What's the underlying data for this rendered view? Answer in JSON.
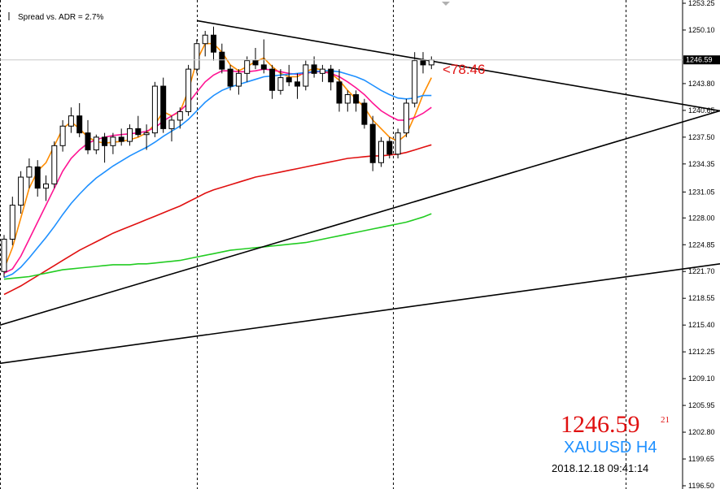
{
  "chart_data": {
    "type": "candlestick",
    "title": "",
    "indicator_label": "Spread vs. ADR = 2.7%",
    "timer_label": "<78:46",
    "symbol_label": "XAUUSD H4",
    "price": {
      "big": "1246.59",
      "sup": "21",
      "axis_label": "1246.59",
      "value": 1246.59
    },
    "datetime_label": "2018.12.18 09:41:14",
    "ylim": [
      1196.5,
      1253.25
    ],
    "y_ticks": [
      {
        "v": 1253.25,
        "label": "1253.25"
      },
      {
        "v": 1250.1,
        "label": "1250.10"
      },
      {
        "v": 1243.8,
        "label": "1243.80"
      },
      {
        "v": 1240.65,
        "label": "1240.65"
      },
      {
        "v": 1237.5,
        "label": "1237.50"
      },
      {
        "v": 1234.35,
        "label": "1234.35"
      },
      {
        "v": 1231.05,
        "label": "1231.05"
      },
      {
        "v": 1228.0,
        "label": "1228.00"
      },
      {
        "v": 1224.85,
        "label": "1224.85"
      },
      {
        "v": 1221.7,
        "label": "1221.70"
      },
      {
        "v": 1218.55,
        "label": "1218.55"
      },
      {
        "v": 1215.4,
        "label": "1215.40"
      },
      {
        "v": 1212.25,
        "label": "1212.25"
      },
      {
        "v": 1209.1,
        "label": "1209.10"
      },
      {
        "v": 1205.95,
        "label": "1205.95"
      },
      {
        "v": 1202.8,
        "label": "1202.80"
      },
      {
        "v": 1199.65,
        "label": "1199.65"
      },
      {
        "v": 1196.5,
        "label": "1196.50"
      }
    ],
    "candles": [
      [
        1221.7,
        1226.0,
        1221.0,
        1225.5
      ],
      [
        1225.5,
        1230.5,
        1224.8,
        1229.5
      ],
      [
        1229.5,
        1233.5,
        1228.5,
        1232.8
      ],
      [
        1232.8,
        1235.0,
        1231.5,
        1234.0
      ],
      [
        1234.0,
        1234.8,
        1230.5,
        1231.5
      ],
      [
        1231.5,
        1233.0,
        1230.0,
        1232.0
      ],
      [
        1232.0,
        1237.0,
        1231.5,
        1236.5
      ],
      [
        1236.5,
        1239.5,
        1235.8,
        1238.8
      ],
      [
        1238.8,
        1241.0,
        1238.0,
        1240.0
      ],
      [
        1240.0,
        1241.5,
        1237.5,
        1238.0
      ],
      [
        1238.0,
        1239.5,
        1235.5,
        1236.0
      ],
      [
        1236.0,
        1237.8,
        1235.5,
        1237.5
      ],
      [
        1237.5,
        1238.0,
        1234.5,
        1236.5
      ],
      [
        1236.5,
        1238.0,
        1235.5,
        1237.5
      ],
      [
        1237.5,
        1238.5,
        1236.5,
        1237.0
      ],
      [
        1237.0,
        1239.0,
        1236.5,
        1238.5
      ],
      [
        1238.5,
        1240.0,
        1237.5,
        1237.8
      ],
      [
        1237.8,
        1239.0,
        1236.0,
        1238.0
      ],
      [
        1238.0,
        1244.0,
        1237.5,
        1243.5
      ],
      [
        1243.5,
        1244.5,
        1238.0,
        1238.5
      ],
      [
        1238.5,
        1240.0,
        1237.0,
        1239.5
      ],
      [
        1239.5,
        1241.0,
        1238.5,
        1240.5
      ],
      [
        1240.5,
        1246.0,
        1240.0,
        1245.5
      ],
      [
        1245.5,
        1249.0,
        1245.0,
        1248.5
      ],
      [
        1248.5,
        1250.0,
        1247.0,
        1249.5
      ],
      [
        1249.5,
        1250.5,
        1246.5,
        1247.5
      ],
      [
        1247.5,
        1248.5,
        1245.0,
        1245.5
      ],
      [
        1245.5,
        1246.0,
        1243.0,
        1243.5
      ],
      [
        1243.5,
        1245.5,
        1242.5,
        1245.0
      ],
      [
        1245.0,
        1247.0,
        1244.0,
        1246.5
      ],
      [
        1246.5,
        1248.0,
        1245.5,
        1246.0
      ],
      [
        1246.0,
        1249.0,
        1245.0,
        1245.5
      ],
      [
        1245.5,
        1246.0,
        1242.0,
        1243.0
      ],
      [
        1243.0,
        1245.5,
        1242.5,
        1244.5
      ],
      [
        1244.5,
        1246.0,
        1243.5,
        1244.0
      ],
      [
        1244.0,
        1245.0,
        1242.0,
        1243.5
      ],
      [
        1243.5,
        1246.5,
        1243.0,
        1246.0
      ],
      [
        1246.0,
        1247.0,
        1244.5,
        1245.0
      ],
      [
        1245.0,
        1246.0,
        1244.0,
        1245.5
      ],
      [
        1245.5,
        1246.0,
        1243.0,
        1244.0
      ],
      [
        1244.0,
        1245.5,
        1240.5,
        1241.5
      ],
      [
        1241.5,
        1243.0,
        1240.5,
        1242.5
      ],
      [
        1242.5,
        1243.0,
        1240.5,
        1241.5
      ],
      [
        1241.5,
        1242.0,
        1238.5,
        1239.0
      ],
      [
        1239.0,
        1240.0,
        1233.5,
        1234.5
      ],
      [
        1234.5,
        1237.5,
        1234.0,
        1237.0
      ],
      [
        1237.0,
        1237.5,
        1235.0,
        1235.5
      ],
      [
        1235.5,
        1238.5,
        1235.0,
        1238.0
      ],
      [
        1238.0,
        1242.0,
        1237.5,
        1241.5
      ],
      [
        1241.5,
        1247.5,
        1241.0,
        1246.5
      ],
      [
        1246.5,
        1247.5,
        1245.0,
        1246.0
      ],
      [
        1246.0,
        1247.0,
        1245.5,
        1246.59
      ]
    ],
    "series": [
      {
        "color": "#ff8c00",
        "values": [
          1222.0,
          1224.5,
          1228.0,
          1231.5,
          1233.5,
          1234.5,
          1236.5,
          1238.5,
          1239.3,
          1238.5,
          1237.5,
          1237.0,
          1236.8,
          1236.9,
          1237.0,
          1237.2,
          1237.5,
          1238.0,
          1239.0,
          1240.5,
          1240.0,
          1240.5,
          1243.0,
          1246.5,
          1248.5,
          1248.5,
          1247.5,
          1246.0,
          1245.3,
          1245.8,
          1246.4,
          1246.8,
          1245.8,
          1245.0,
          1244.6,
          1244.6,
          1245.2,
          1245.6,
          1245.4,
          1245.0,
          1244.2,
          1243.0,
          1242.0,
          1241.0,
          1239.5,
          1238.5,
          1237.5,
          1237.0,
          1237.8,
          1240.0,
          1242.5,
          1244.5
        ]
      },
      {
        "color": "#ff1493",
        "values": [
          1221.5,
          1222.0,
          1223.5,
          1225.5,
          1227.5,
          1229.5,
          1231.5,
          1233.5,
          1235.0,
          1236.0,
          1236.8,
          1237.2,
          1237.5,
          1237.7,
          1237.8,
          1237.9,
          1238.0,
          1238.2,
          1238.6,
          1239.4,
          1240.0,
          1240.6,
          1241.5,
          1242.8,
          1244.0,
          1244.8,
          1245.3,
          1245.3,
          1245.2,
          1245.2,
          1245.3,
          1245.5,
          1245.4,
          1245.2,
          1245.0,
          1244.9,
          1245.0,
          1245.2,
          1245.2,
          1245.0,
          1244.6,
          1244.0,
          1243.3,
          1242.5,
          1241.5,
          1240.6,
          1240.0,
          1239.5,
          1239.5,
          1239.8,
          1240.3,
          1241.0
        ]
      },
      {
        "color": "#1e90ff",
        "values": [
          1221.0,
          1221.4,
          1222.2,
          1223.3,
          1224.5,
          1225.7,
          1227.0,
          1228.4,
          1229.7,
          1230.8,
          1231.8,
          1232.7,
          1233.4,
          1234.1,
          1234.7,
          1235.3,
          1235.8,
          1236.3,
          1236.9,
          1237.6,
          1238.2,
          1238.8,
          1239.6,
          1240.6,
          1241.6,
          1242.4,
          1243.0,
          1243.4,
          1243.7,
          1244.0,
          1244.3,
          1244.6,
          1244.7,
          1244.8,
          1244.9,
          1245.0,
          1245.1,
          1245.2,
          1245.3,
          1245.3,
          1245.2,
          1244.9,
          1244.6,
          1244.2,
          1243.6,
          1243.0,
          1242.5,
          1242.1,
          1242.0,
          1242.1,
          1242.4,
          1242.4
        ]
      },
      {
        "color": "#e01010",
        "values": [
          1219.0,
          1219.5,
          1220.0,
          1220.6,
          1221.2,
          1221.8,
          1222.4,
          1223.0,
          1223.6,
          1224.2,
          1224.7,
          1225.2,
          1225.7,
          1226.2,
          1226.6,
          1227.0,
          1227.4,
          1227.8,
          1228.2,
          1228.6,
          1229.0,
          1229.4,
          1229.9,
          1230.4,
          1230.9,
          1231.3,
          1231.6,
          1231.9,
          1232.2,
          1232.5,
          1232.8,
          1233.0,
          1233.2,
          1233.4,
          1233.6,
          1233.8,
          1234.0,
          1234.2,
          1234.4,
          1234.6,
          1234.8,
          1235.0,
          1235.1,
          1235.2,
          1235.3,
          1235.3,
          1235.4,
          1235.5,
          1235.7,
          1236.0,
          1236.3,
          1236.6
        ]
      },
      {
        "color": "#22cc22",
        "values": [
          1220.8,
          1220.9,
          1221.0,
          1221.1,
          1221.3,
          1221.5,
          1221.7,
          1221.9,
          1222.0,
          1222.1,
          1222.2,
          1222.3,
          1222.4,
          1222.5,
          1222.5,
          1222.5,
          1222.6,
          1222.6,
          1222.7,
          1222.8,
          1222.9,
          1223.0,
          1223.2,
          1223.4,
          1223.6,
          1223.8,
          1224.0,
          1224.2,
          1224.3,
          1224.4,
          1224.5,
          1224.6,
          1224.7,
          1224.8,
          1224.9,
          1225.0,
          1225.1,
          1225.3,
          1225.5,
          1225.7,
          1225.9,
          1226.1,
          1226.3,
          1226.5,
          1226.7,
          1226.9,
          1227.1,
          1227.3,
          1227.5,
          1227.8,
          1228.1,
          1228.5
        ]
      }
    ],
    "trendlines": [
      {
        "x1": 0,
        "y1": 1215.4,
        "x2": 885,
        "y2": 1240.6
      },
      {
        "x1": 0,
        "y1": 1210.9,
        "x2": 885,
        "y2": 1222.6
      },
      {
        "x1": 242,
        "y1": 1251.2,
        "x2": 885,
        "y2": 1240.6
      }
    ],
    "period_separators": [
      0,
      242,
      483,
      769
    ]
  },
  "colors": {
    "background": "#ffffff",
    "bull_candle": "#ffffff",
    "bear_candle": "#000000",
    "wick": "#000000",
    "grid_separator": "#000000",
    "price_label_bg": "#000000"
  }
}
